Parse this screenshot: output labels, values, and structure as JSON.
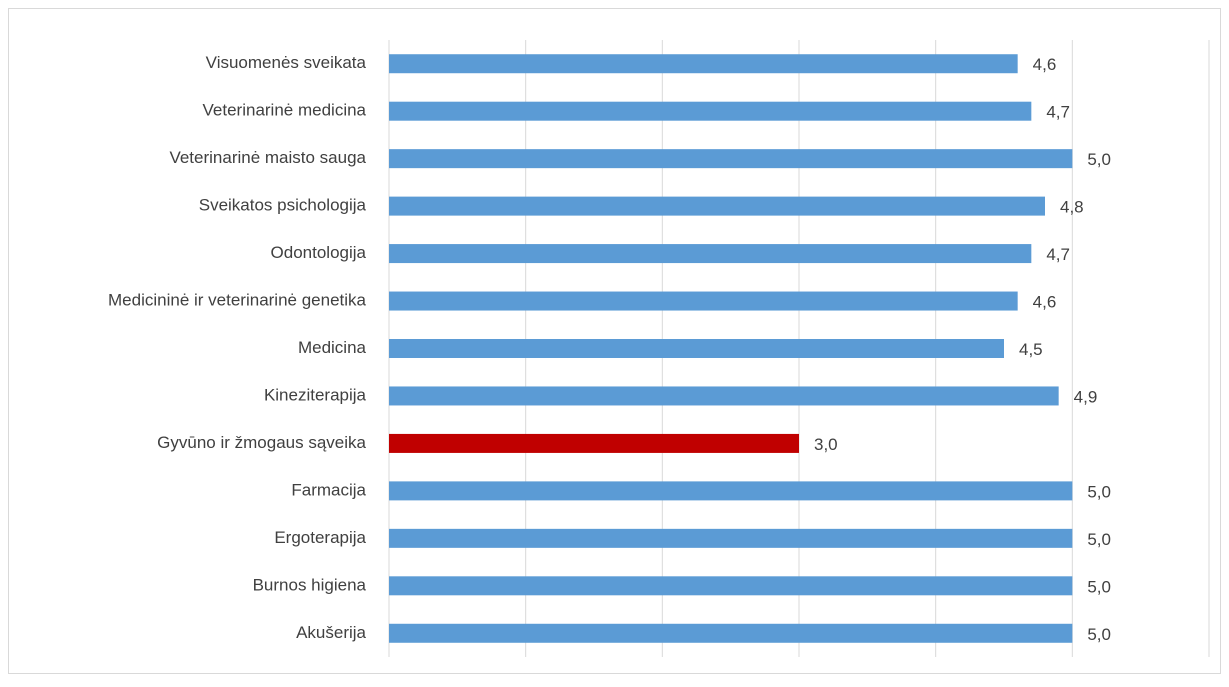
{
  "chart_data": {
    "type": "barh",
    "categories": [
      "Visuomenės sveikata",
      "Veterinarinė medicina",
      "Veterinarinė maisto sauga",
      "Sveikatos psichologija",
      "Odontologija",
      "Medicininė ir veterinarinė genetika",
      "Medicina",
      "Kineziterapija",
      "Gyvūno ir žmogaus sąveika",
      "Farmacija",
      "Ergoterapija",
      "Burnos higiena",
      "Akušerija"
    ],
    "values": [
      4.6,
      4.7,
      5.0,
      4.8,
      4.7,
      4.6,
      4.5,
      4.9,
      3.0,
      5.0,
      5.0,
      5.0,
      5.0
    ],
    "value_labels": [
      "4,6",
      "4,7",
      "5,0",
      "4,8",
      "4,7",
      "4,6",
      "4,5",
      "4,9",
      "3,0",
      "5,0",
      "5,0",
      "5,0",
      "5,0"
    ],
    "colors": [
      "#5b9bd5",
      "#5b9bd5",
      "#5b9bd5",
      "#5b9bd5",
      "#5b9bd5",
      "#5b9bd5",
      "#5b9bd5",
      "#5b9bd5",
      "#c00000",
      "#5b9bd5",
      "#5b9bd5",
      "#5b9bd5",
      "#5b9bd5"
    ],
    "xlim": [
      0,
      6
    ],
    "xticks": [
      0,
      1,
      2,
      3,
      4,
      5,
      6
    ],
    "grid": true
  }
}
